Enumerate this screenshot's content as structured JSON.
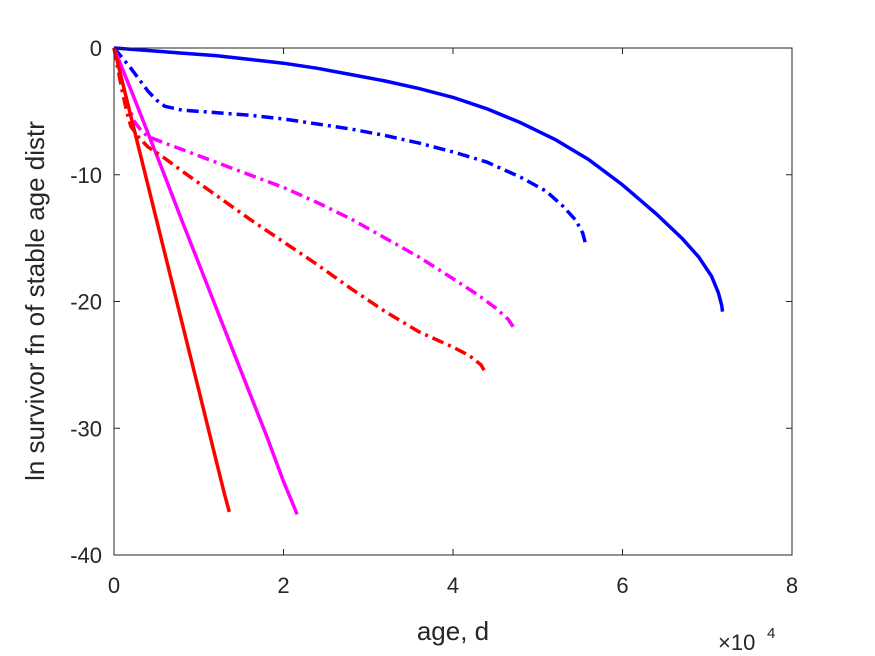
{
  "chart_data": {
    "type": "line",
    "xlabel": "age, d",
    "ylabel": "ln survivor fn of stable age distr",
    "x_exponent_label": "×10",
    "x_exponent_power": "4",
    "xlim": [
      0,
      80000
    ],
    "ylim": [
      -40,
      0
    ],
    "xticks": [
      0,
      20000,
      40000,
      60000,
      80000
    ],
    "xtick_labels": [
      "0",
      "2",
      "4",
      "6",
      "8"
    ],
    "yticks": [
      0,
      -10,
      -20,
      -30,
      -40
    ],
    "ytick_labels": [
      "0",
      "-10",
      "-20",
      "-30",
      "-40"
    ],
    "grid": false,
    "legend": "none",
    "series": [
      {
        "color": "#0000ff",
        "style": "solid",
        "x": [
          0,
          4000,
          8000,
          12000,
          16000,
          20000,
          24000,
          28000,
          32000,
          36000,
          40000,
          44000,
          48000,
          52000,
          56000,
          60000,
          64000,
          67000,
          69000,
          70500,
          71300,
          71700,
          71800
        ],
        "y": [
          0,
          -0.2,
          -0.4,
          -0.6,
          -0.9,
          -1.2,
          -1.6,
          -2.1,
          -2.6,
          -3.2,
          -3.9,
          -4.8,
          -5.9,
          -7.2,
          -8.8,
          -10.8,
          -13.1,
          -15.0,
          -16.5,
          -18.0,
          -19.3,
          -20.3,
          -20.8
        ]
      },
      {
        "color": "#0000ff",
        "style": "dashdot",
        "x": [
          0,
          1000,
          2000,
          3000,
          4000,
          5000,
          6000,
          8000,
          12000,
          16000,
          20000,
          24000,
          28000,
          32000,
          36000,
          40000,
          44000,
          48000,
          51000,
          53000,
          54500,
          55300,
          55700
        ],
        "y": [
          0,
          -0.8,
          -1.6,
          -2.5,
          -3.4,
          -4.1,
          -4.6,
          -4.9,
          -5.1,
          -5.3,
          -5.6,
          -6.0,
          -6.4,
          -6.9,
          -7.5,
          -8.2,
          -9.0,
          -10.2,
          -11.3,
          -12.5,
          -13.6,
          -14.6,
          -15.6
        ]
      },
      {
        "color": "#ff00ff",
        "style": "solid",
        "x": [
          0,
          2000,
          4000,
          6000,
          8000,
          10000,
          12000,
          14000,
          16000,
          18000,
          20000,
          21000,
          21600
        ],
        "y": [
          0,
          -3.3,
          -6.7,
          -10.1,
          -13.6,
          -17.0,
          -20.4,
          -23.8,
          -27.2,
          -30.6,
          -34.2,
          -35.8,
          -36.8
        ]
      },
      {
        "color": "#ff00ff",
        "style": "dashdot",
        "x": [
          0,
          800,
          1600,
          2400,
          3200,
          4000,
          6000,
          8000,
          12000,
          16000,
          20000,
          24000,
          28000,
          32000,
          36000,
          40000,
          43000,
          45000,
          46500,
          47300
        ],
        "y": [
          0,
          -2.2,
          -4.4,
          -5.8,
          -6.5,
          -7.0,
          -7.5,
          -8.0,
          -9.0,
          -10.0,
          -11.0,
          -12.2,
          -13.5,
          -15.0,
          -16.5,
          -18.2,
          -19.5,
          -20.5,
          -21.4,
          -22.2
        ]
      },
      {
        "color": "#ff0000",
        "style": "solid",
        "x": [
          0,
          2000,
          4000,
          6000,
          8000,
          10000,
          12000,
          13000,
          13600
        ],
        "y": [
          0,
          -5.4,
          -10.8,
          -16.2,
          -21.6,
          -27.0,
          -32.4,
          -35.1,
          -36.6
        ]
      },
      {
        "color": "#ff0000",
        "style": "dashdot",
        "x": [
          0,
          500,
          1000,
          1500,
          2000,
          3000,
          4000,
          6000,
          8000,
          12000,
          16000,
          20000,
          24000,
          28000,
          32000,
          36000,
          40000,
          42000,
          43300,
          43900
        ],
        "y": [
          0,
          -1.8,
          -3.5,
          -5.0,
          -6.2,
          -7.1,
          -7.8,
          -8.7,
          -9.7,
          -11.6,
          -13.5,
          -15.3,
          -17.1,
          -19.0,
          -20.8,
          -22.4,
          -23.6,
          -24.3,
          -25.0,
          -25.7
        ]
      }
    ]
  }
}
